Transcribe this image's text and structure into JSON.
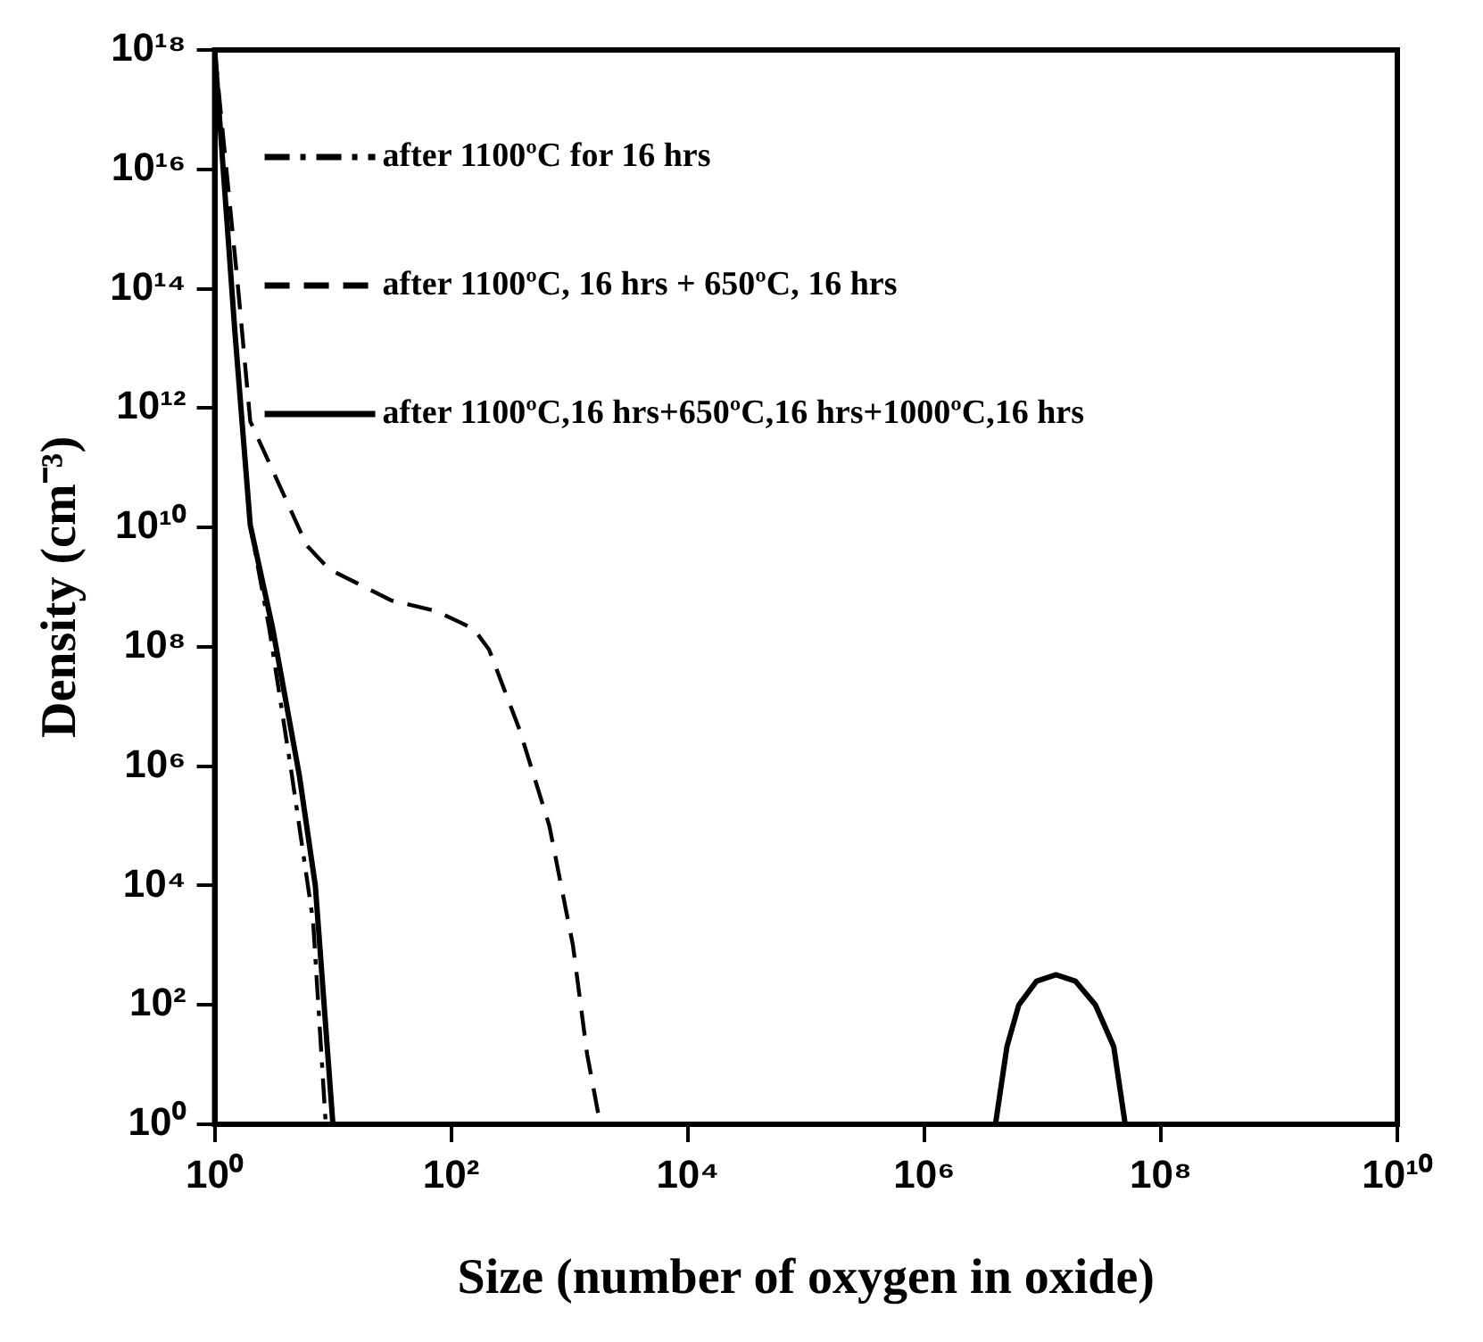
{
  "chart_data": {
    "type": "line",
    "xlabel": "Size (number of oxygen in oxide)",
    "ylabel": "Density (cm⁻³)",
    "log": "xy",
    "legend": "top left",
    "grid": false,
    "marker": "none",
    "xlim": [
      1,
      10000000000.0
    ],
    "xticks": [
      {
        "value": 1,
        "label": "10⁰"
      },
      {
        "value": 100,
        "label": "10²"
      },
      {
        "value": 10000,
        "label": "10⁴"
      },
      {
        "value": 1000000,
        "label": "10⁶"
      },
      {
        "value": 100000000,
        "label": "10⁸"
      },
      {
        "value": 10000000000,
        "label": "10¹⁰"
      }
    ],
    "ylim": [
      1,
      1e+18
    ],
    "yticks": [
      {
        "value": 1,
        "label": "10⁰"
      },
      {
        "value": 100,
        "label": "10²"
      },
      {
        "value": 10000,
        "label": "10⁴"
      },
      {
        "value": 1000000,
        "label": "10⁶"
      },
      {
        "value": 100000000,
        "label": "10⁸"
      },
      {
        "value": 10000000000,
        "label": "10¹⁰"
      },
      {
        "value": 1000000000000,
        "label": "10¹²"
      },
      {
        "value": 100000000000000,
        "label": "10¹⁴"
      },
      {
        "value": 10000000000000000,
        "label": "10¹⁶"
      },
      {
        "value": 1000000000000000000,
        "label": "10¹⁸"
      }
    ],
    "series": [
      {
        "name": "after 1100ºC for 16 hrs",
        "color": "#000000",
        "line_style": "dashdot",
        "x": [
          1,
          1.48,
          2.0,
          2.9,
          4.5,
          6.8,
          8.7
        ],
        "values": [
          1e+18,
          20000000000000.0,
          11000000000.0,
          200000000.0,
          700000.0,
          2500.0,
          1
        ]
      },
      {
        "name": "after 1100ºC, 16 hrs + 650ºC, 16 hrs",
        "color": "#000000",
        "line_style": "dashed",
        "x": [
          1,
          1.58,
          2.0,
          3.4,
          6.0,
          9.3,
          31,
          74,
          155,
          209,
          380,
          676,
          1070,
          1410,
          1820
        ],
        "values": [
          1e+18,
          100000000000000.0,
          600000000000.0,
          60000000000.0,
          5000000000.0,
          2000000000.0,
          600000000.0,
          400000000.0,
          200000000.0,
          90000000.0,
          4000000.0,
          100000.0,
          1000.0,
          15,
          1
        ]
      },
      {
        "name": "after 1100ºC,16 hrs+650ºC,16 hrs+1000ºC,16 hrs",
        "color": "#000000",
        "line_style": "solid",
        "x": [
          1,
          1.48,
          2.0,
          3.1,
          5.2,
          7.1,
          10,
          100000,
          4000000,
          5000000,
          6300000,
          8900000,
          13000000,
          19000000,
          28000000,
          40000000,
          50000000
        ],
        "values": [
          1e+18,
          20000000000000.0,
          11000000000.0,
          200000000.0,
          700000.0,
          10000.0,
          1,
          null,
          1,
          20,
          100,
          250,
          320,
          250,
          100,
          20,
          1
        ]
      }
    ]
  }
}
